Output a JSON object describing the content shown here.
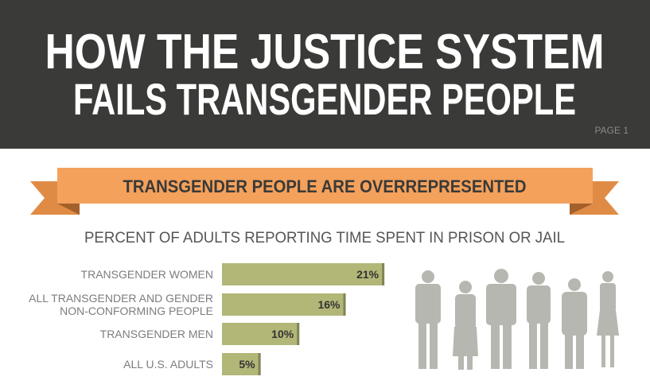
{
  "header": {
    "title_lines": [
      "HOW THE JUSTICE SYSTEM",
      "FAILS TRANSGENDER PEOPLE"
    ],
    "page": "PAGE 1"
  },
  "banner": "TRANSGENDER PEOPLE ARE OVERREPRESENTED",
  "chart_data": {
    "type": "bar",
    "orientation": "horizontal",
    "title": "PERCENT OF ADULTS REPORTING TIME SPENT IN PRISON OR JAIL",
    "categories": [
      "TRANSGENDER WOMEN",
      "ALL TRANSGENDER AND GENDER\nNON-CONFORMING PEOPLE",
      "TRANSGENDER MEN",
      "ALL U.S. ADULTS"
    ],
    "values": [
      21,
      16,
      10,
      5
    ],
    "value_labels": [
      "21%",
      "16%",
      "10%",
      "5%"
    ],
    "color": "#b2b677"
  }
}
